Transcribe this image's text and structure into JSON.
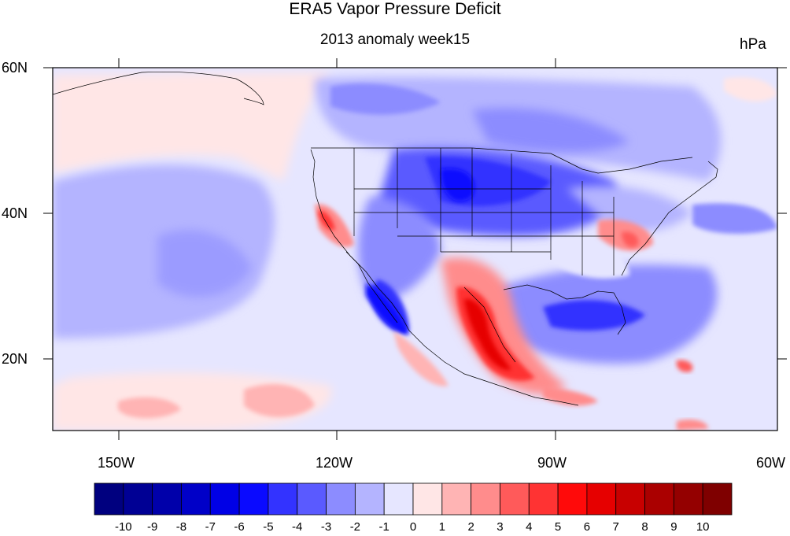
{
  "title": "ERA5 Vapor Pressure Deficit",
  "subtitle": "2013 anomaly week15",
  "units": "hPa",
  "lat_labels": [
    "60N",
    "40N",
    "20N"
  ],
  "lon_labels": [
    "150W",
    "120W",
    "90W",
    "60W"
  ],
  "colorbar": {
    "labels": [
      "-10",
      "-9",
      "-8",
      "-7",
      "-6",
      "-5",
      "-4",
      "-3",
      "-2",
      "-1",
      "0",
      "1",
      "2",
      "3",
      "4",
      "5",
      "6",
      "7",
      "8",
      "9",
      "10"
    ],
    "colors": [
      "#00007f",
      "#000094",
      "#0000aa",
      "#0000c8",
      "#0000e6",
      "#0a0aff",
      "#3333ff",
      "#5a5aff",
      "#8c8cff",
      "#b4b4ff",
      "#e6e6ff",
      "#ffe6e6",
      "#ffb4b4",
      "#ff8c8c",
      "#ff5a5a",
      "#ff3333",
      "#ff0a0a",
      "#e60000",
      "#c80000",
      "#aa0000",
      "#940000",
      "#7f0000"
    ]
  },
  "colors": {
    "ocean_background": "#e6e6ff",
    "pacific_positive": "#ffe6e6",
    "anomaly_positive_max": "#e60000",
    "anomaly_negative_max": "#0a0aff"
  }
}
